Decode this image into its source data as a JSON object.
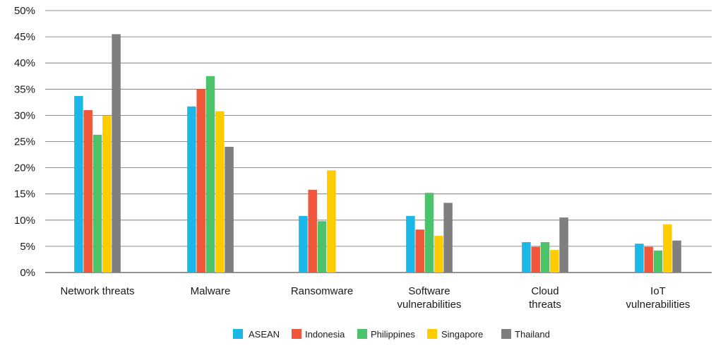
{
  "chart_data": {
    "type": "bar",
    "categories": [
      [
        "Network threats"
      ],
      [
        "Malware"
      ],
      [
        "Ransomware"
      ],
      [
        "Software",
        "vulnerabilities"
      ],
      [
        "Cloud",
        "threats"
      ],
      [
        "IoT",
        "vulnerabilities"
      ]
    ],
    "series": [
      {
        "name": "ASEAN",
        "color": "#1ab8e6",
        "values": [
          33.7,
          31.7,
          10.8,
          10.8,
          5.8,
          5.5
        ]
      },
      {
        "name": "Indonesia",
        "color": "#f0563a",
        "values": [
          31.0,
          35.0,
          15.8,
          8.2,
          4.9,
          4.9
        ]
      },
      {
        "name": "Philippines",
        "color": "#4cc26b",
        "values": [
          26.3,
          37.5,
          9.8,
          15.2,
          5.8,
          4.2
        ]
      },
      {
        "name": "Singapore",
        "color": "#ffcc00",
        "values": [
          29.9,
          30.8,
          19.5,
          7.0,
          4.3,
          9.2
        ]
      },
      {
        "name": "Thailand",
        "color": "#7f7f7f",
        "values": [
          45.5,
          24.0,
          null,
          13.3,
          10.5,
          6.1
        ]
      }
    ],
    "yticks": [
      "0%",
      "5%",
      "10%",
      "15%",
      "20%",
      "25%",
      "30%",
      "35%",
      "40%",
      "45%",
      "50%"
    ],
    "ylim": [
      0,
      50
    ],
    "grid": true,
    "legend": "bottom-center"
  }
}
